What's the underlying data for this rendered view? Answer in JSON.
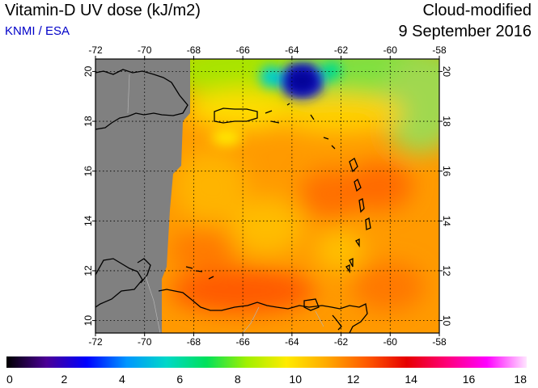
{
  "header": {
    "title": "Vitamin-D UV dose (kJ/m2)",
    "credit": "KNMI / ESA",
    "product": "Cloud-modified",
    "date": "9 September 2016"
  },
  "map": {
    "lon_range": [
      -72,
      -58
    ],
    "lat_range": [
      9.5,
      20.5
    ],
    "lon_ticks": [
      "-72",
      "-70",
      "-68",
      "-66",
      "-64",
      "-62",
      "-60",
      "-58"
    ],
    "lat_ticks": [
      "10",
      "12",
      "14",
      "16",
      "18",
      "20"
    ],
    "no_data_color": "#808080",
    "grid": "dotted"
  },
  "colorbar": {
    "ticks": [
      "0",
      "2",
      "4",
      "6",
      "8",
      "10",
      "12",
      "14",
      "16",
      "18"
    ],
    "colors": [
      "#000000",
      "#4b0096",
      "#0000ff",
      "#0096ff",
      "#00d8c8",
      "#00e15a",
      "#a0f000",
      "#ffeb00",
      "#ffaa00",
      "#ff5a00",
      "#e60000",
      "#ff0078",
      "#ff00ff",
      "#ffe6ff"
    ]
  },
  "colors": {
    "background": "#ff9600",
    "no_data": "#808080",
    "coast": "#000000",
    "border": "#aaaaaa"
  }
}
